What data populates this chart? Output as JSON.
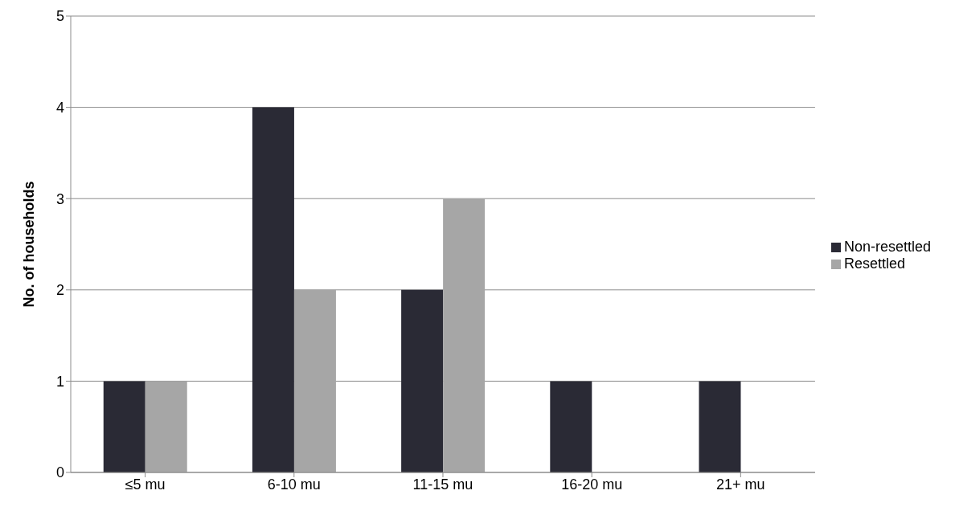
{
  "chart_data": {
    "type": "bar",
    "ylabel": "No. of households",
    "categories": [
      "≤5 mu",
      "6-10 mu",
      "11-15 mu",
      "16-20 mu",
      "21+ mu"
    ],
    "series": [
      {
        "name": "Non-resettled",
        "color": "#2a2a35",
        "values": [
          1,
          4,
          2,
          1,
          1
        ]
      },
      {
        "name": "Resettled",
        "color": "#a6a6a6",
        "values": [
          1,
          2,
          3,
          0,
          0
        ]
      }
    ],
    "ylim": [
      0,
      5
    ],
    "yticks": [
      0,
      1,
      2,
      3,
      4,
      5
    ],
    "grid": "y",
    "legend": "right"
  }
}
